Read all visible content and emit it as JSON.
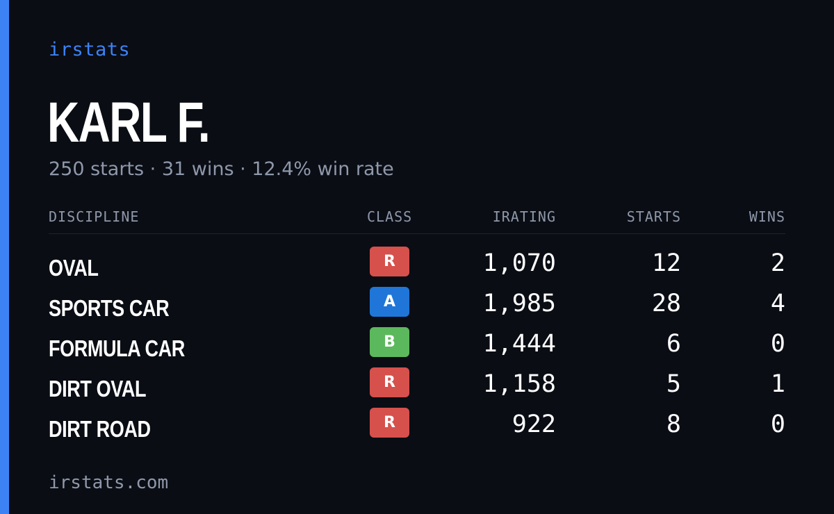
{
  "brand": "irstats",
  "player": {
    "name": "KARL F.",
    "summary": "250 starts · 31 wins · 12.4% win rate"
  },
  "table": {
    "headers": {
      "discipline": "DISCIPLINE",
      "class": "CLASS",
      "irating": "IRATING",
      "starts": "STARTS",
      "wins": "WINS"
    },
    "rows": [
      {
        "discipline": "OVAL",
        "class": "R",
        "class_color": "#d6504c",
        "irating": "1,070",
        "starts": "12",
        "wins": "2"
      },
      {
        "discipline": "SPORTS CAR",
        "class": "A",
        "class_color": "#1f76d8",
        "irating": "1,985",
        "starts": "28",
        "wins": "4"
      },
      {
        "discipline": "FORMULA CAR",
        "class": "B",
        "class_color": "#5cb85c",
        "irating": "1,444",
        "starts": "6",
        "wins": "0"
      },
      {
        "discipline": "DIRT OVAL",
        "class": "R",
        "class_color": "#d6504c",
        "irating": "1,158",
        "starts": "5",
        "wins": "1"
      },
      {
        "discipline": "DIRT ROAD",
        "class": "R",
        "class_color": "#d6504c",
        "irating": "922",
        "starts": "8",
        "wins": "0"
      }
    ]
  },
  "footer": "irstats.com",
  "colors": {
    "accent": "#3d82f5",
    "background": "#0a0d14",
    "muted_text": "#8f98aa"
  }
}
